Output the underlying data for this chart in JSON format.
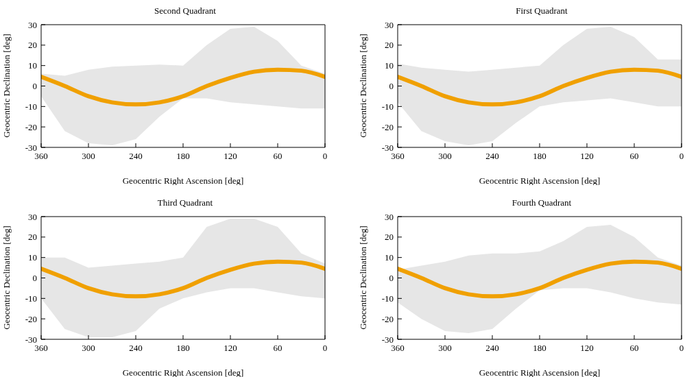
{
  "chart_data": [
    {
      "type": "line",
      "title": "Second Quadrant",
      "xlabel": "Geocentric Right Ascension [deg]",
      "ylabel": "Geocentric Declination [deg]",
      "x": [
        360,
        330,
        300,
        270,
        240,
        210,
        180,
        150,
        120,
        90,
        60,
        30,
        0
      ],
      "xlim": [
        360,
        0
      ],
      "xticks": [
        360,
        300,
        240,
        180,
        120,
        60,
        0
      ],
      "ylim": [
        -30,
        30
      ],
      "yticks": [
        -30,
        -20,
        -10,
        0,
        10,
        20,
        30
      ],
      "series": [
        {
          "color": "#f0a000",
          "values": [
            4.5,
            0,
            -5,
            -8,
            -9,
            -8,
            -5,
            0,
            4,
            7,
            8,
            7.5,
            4.5
          ],
          "lower": [
            -5,
            -22,
            -28,
            -29,
            -26,
            -15,
            -6,
            -6,
            -8,
            -9,
            -10,
            -11,
            -11
          ],
          "upper": [
            6,
            5,
            8,
            9.5,
            10,
            10.5,
            10,
            20,
            28,
            29,
            22,
            10,
            6
          ]
        }
      ]
    },
    {
      "type": "line",
      "title": "First Quadrant",
      "xlabel": "Geocentric Right Ascension [deg]",
      "ylabel": "Geocentric Declination [deg]",
      "x": [
        360,
        330,
        300,
        270,
        240,
        210,
        180,
        150,
        120,
        90,
        60,
        30,
        0
      ],
      "xlim": [
        360,
        0
      ],
      "xticks": [
        360,
        300,
        240,
        180,
        120,
        60,
        0
      ],
      "ylim": [
        -30,
        30
      ],
      "yticks": [
        -30,
        -20,
        -10,
        0,
        10,
        20,
        30
      ],
      "series": [
        {
          "color": "#f0a000",
          "values": [
            4.5,
            0,
            -5,
            -8,
            -9,
            -8,
            -5,
            0,
            4,
            7,
            8,
            7.5,
            4.5
          ],
          "lower": [
            -8,
            -22,
            -27,
            -29,
            -27,
            -18,
            -10,
            -8,
            -7,
            -6,
            -8,
            -10,
            -10
          ],
          "upper": [
            11,
            9,
            8,
            7,
            8,
            9,
            10,
            20,
            28,
            29,
            24,
            13,
            13
          ]
        }
      ]
    },
    {
      "type": "line",
      "title": "Third Quadrant",
      "xlabel": "Geocentric Right Ascension [deg]",
      "ylabel": "Geocentric Declination [deg]",
      "x": [
        360,
        330,
        300,
        270,
        240,
        210,
        180,
        150,
        120,
        90,
        60,
        30,
        0
      ],
      "xlim": [
        360,
        0
      ],
      "xticks": [
        360,
        300,
        240,
        180,
        120,
        60,
        0
      ],
      "ylim": [
        -30,
        30
      ],
      "yticks": [
        -30,
        -20,
        -10,
        0,
        10,
        20,
        30
      ],
      "series": [
        {
          "color": "#f0a000",
          "values": [
            4.5,
            0,
            -5,
            -8,
            -9,
            -8,
            -5,
            0,
            4,
            7,
            8,
            7.5,
            4.5
          ],
          "lower": [
            -10,
            -25,
            -29,
            -29,
            -26,
            -15,
            -10,
            -7,
            -5,
            -5,
            -7,
            -9,
            -10
          ],
          "upper": [
            10,
            10,
            5,
            6,
            7,
            8,
            10,
            25,
            29,
            29,
            25,
            12,
            7
          ]
        }
      ]
    },
    {
      "type": "line",
      "title": "Fourth Quadrant",
      "xlabel": "Geocentric Right Ascension [deg]",
      "ylabel": "Geocentric Declination [deg]",
      "x": [
        360,
        330,
        300,
        270,
        240,
        210,
        180,
        150,
        120,
        90,
        60,
        30,
        0
      ],
      "xlim": [
        360,
        0
      ],
      "xticks": [
        360,
        300,
        240,
        180,
        120,
        60,
        0
      ],
      "ylim": [
        -30,
        30
      ],
      "yticks": [
        -30,
        -20,
        -10,
        0,
        10,
        20,
        30
      ],
      "series": [
        {
          "color": "#f0a000",
          "values": [
            4.5,
            0,
            -5,
            -8,
            -9,
            -8,
            -5,
            0,
            4,
            7,
            8,
            7.5,
            4.5
          ],
          "lower": [
            -12,
            -20,
            -26,
            -27,
            -25,
            -15,
            -6,
            -5,
            -5,
            -7,
            -10,
            -12,
            -13
          ],
          "upper": [
            4,
            6,
            8,
            11,
            12,
            12,
            13,
            18,
            25,
            26,
            20,
            10,
            6
          ]
        }
      ]
    }
  ]
}
